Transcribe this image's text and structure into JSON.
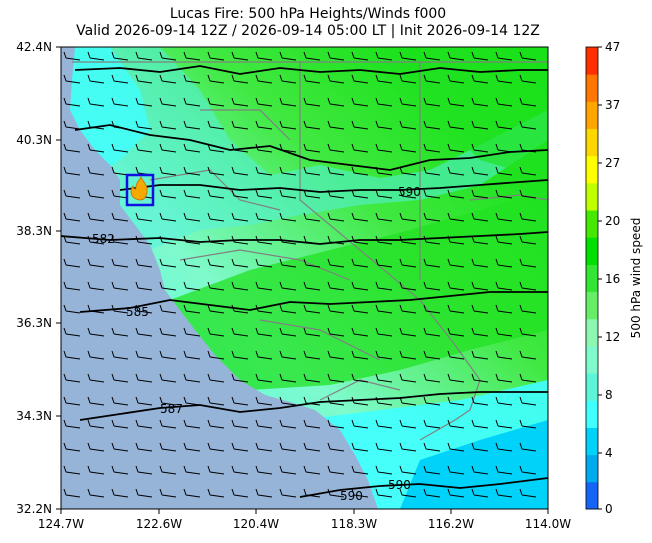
{
  "title_line1": "Lucas Fire: 500 hPa Heights/Winds f000",
  "title_line2": "Valid 2026-09-14 12Z / 2026-09-14 05:00 LT | Init 2026-09-14 12Z",
  "map": {
    "lat_ticks": [
      "42.4N",
      "40.3N",
      "38.3N",
      "36.3N",
      "34.3N",
      "32.2N"
    ],
    "lon_ticks": [
      "124.7W",
      "122.6W",
      "120.4W",
      "118.3W",
      "116.2W",
      "114.0W"
    ],
    "extent": {
      "lon_min": -124.7,
      "lon_max": -114.0,
      "lat_min": 32.2,
      "lat_max": 42.4
    },
    "ocean_color": "#95b4d8",
    "fire_marker": {
      "icon": "fire-icon",
      "box_color": "#1010e0",
      "flame_color": "#f5a800"
    },
    "contour_labels": [
      "582",
      "585",
      "587",
      "590",
      "590",
      "590"
    ]
  },
  "colorbar": {
    "label": "500 hPa wind speed",
    "ticks": [
      "47",
      "37",
      "27",
      "20",
      "16",
      "12",
      "8",
      "4",
      "0"
    ],
    "colors": [
      "#1464f5",
      "#00aaee",
      "#00d2fa",
      "#40ffff",
      "#5cf5d8",
      "#7ffacc",
      "#8cf7b0",
      "#66ef66",
      "#33e633",
      "#00e000",
      "#44e800",
      "#bfff00",
      "#ffff00",
      "#ffd700",
      "#ffa500",
      "#ff7700",
      "#ff3000"
    ]
  }
}
